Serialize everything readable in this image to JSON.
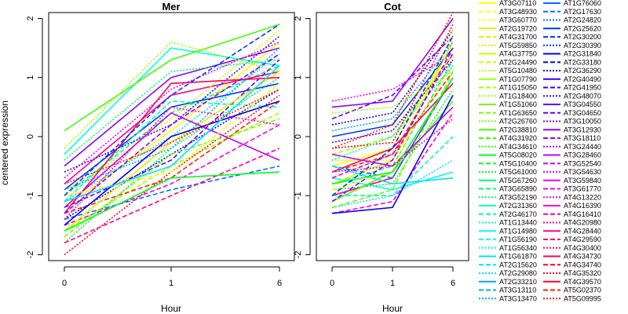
{
  "chart_data": [
    {
      "type": "line",
      "title": "Mer",
      "xlabel": "Hour",
      "ylabel": "centered expression",
      "x": [
        0,
        1,
        6
      ],
      "xticks": [
        "0",
        "1",
        "6"
      ],
      "yticks": [
        "-2",
        "-1",
        "0",
        "1",
        "2"
      ],
      "ylim": [
        -2.1,
        2.1
      ],
      "grid": false,
      "series": [
        {
          "values": [
            -1.2,
            0.1,
            1.6
          ]
        },
        {
          "values": [
            -1.0,
            0.4,
            1.2
          ]
        },
        {
          "values": [
            -1.4,
            -0.3,
            0.8
          ]
        },
        {
          "values": [
            -0.8,
            0.7,
            1.1
          ]
        },
        {
          "values": [
            -1.6,
            -0.5,
            0.4
          ]
        },
        {
          "values": [
            -1.1,
            0.0,
            1.4
          ]
        },
        {
          "values": [
            -0.5,
            1.0,
            1.5
          ]
        },
        {
          "values": [
            -1.3,
            -0.7,
            0.6
          ]
        },
        {
          "values": [
            -1.8,
            -0.2,
            1.0
          ]
        },
        {
          "values": [
            -0.9,
            0.5,
            0.9
          ]
        },
        {
          "values": [
            -1.5,
            -0.8,
            0.2
          ]
        },
        {
          "values": [
            -1.0,
            0.3,
            1.8
          ]
        },
        {
          "values": [
            -0.3,
            1.5,
            1.2
          ]
        },
        {
          "values": [
            -1.2,
            -0.4,
            1.3
          ]
        },
        {
          "values": [
            -2.0,
            -0.6,
            0.7
          ]
        },
        {
          "values": [
            0.1,
            1.3,
            1.9
          ]
        },
        {
          "values": [
            -1.4,
            -0.9,
            -0.5
          ]
        },
        {
          "values": [
            -0.7,
            0.8,
            1.6
          ]
        },
        {
          "values": [
            -1.6,
            -0.1,
            1.1
          ]
        },
        {
          "values": [
            -1.1,
            0.6,
            0.5
          ]
        },
        {
          "values": [
            -0.6,
            0.2,
            1.7
          ]
        },
        {
          "values": [
            -1.3,
            0.9,
            1.0
          ]
        },
        {
          "values": [
            -1.7,
            -0.3,
            0.3
          ]
        },
        {
          "values": [
            -0.9,
            -0.2,
            1.5
          ]
        },
        {
          "values": [
            -1.2,
            0.4,
            -0.4
          ]
        },
        {
          "values": [
            -1.0,
            -0.6,
            0.9
          ]
        },
        {
          "values": [
            -0.4,
            1.1,
            1.3
          ]
        },
        {
          "values": [
            -1.5,
            0.0,
            0.6
          ]
        },
        {
          "values": [
            -1.8,
            -1.0,
            -0.2
          ]
        },
        {
          "values": [
            -0.2,
            1.6,
            1.1
          ]
        },
        {
          "values": [
            -1.1,
            -0.5,
            1.2
          ]
        },
        {
          "values": [
            -1.3,
            0.2,
            1.4
          ]
        },
        {
          "values": [
            -0.8,
            -0.1,
            0.8
          ]
        },
        {
          "values": [
            -1.6,
            -0.7,
            -0.6
          ]
        },
        {
          "values": [
            -1.0,
            0.7,
            1.9
          ]
        },
        {
          "values": [
            -1.4,
            0.5,
            0.2
          ]
        }
      ]
    },
    {
      "type": "line",
      "title": "Cot",
      "xlabel": "Hour",
      "x": [
        0,
        1,
        6
      ],
      "xticks": [
        "0",
        "1",
        "6"
      ],
      "yticks": [
        "-2",
        "-1",
        "0",
        "1",
        "2"
      ],
      "ylim": [
        -2.1,
        2.1
      ],
      "grid": false,
      "series": [
        {
          "values": [
            -0.5,
            -0.2,
            1.6
          ]
        },
        {
          "values": [
            -0.8,
            -0.5,
            1.3
          ]
        },
        {
          "values": [
            0.2,
            0.4,
            1.8
          ]
        },
        {
          "values": [
            -1.0,
            -0.7,
            1.0
          ]
        },
        {
          "values": [
            -0.3,
            0.0,
            1.4
          ]
        },
        {
          "values": [
            -1.2,
            -1.0,
            -0.4
          ]
        },
        {
          "values": [
            0.5,
            0.6,
            2.0
          ]
        },
        {
          "values": [
            -0.6,
            -0.3,
            1.1
          ]
        },
        {
          "values": [
            -0.9,
            -0.8,
            0.8
          ]
        },
        {
          "values": [
            0.0,
            0.2,
            1.5
          ]
        },
        {
          "values": [
            -1.3,
            -1.1,
            0.4
          ]
        },
        {
          "values": [
            -0.4,
            -0.4,
            1.2
          ]
        },
        {
          "values": [
            -0.7,
            -0.9,
            -0.6
          ]
        },
        {
          "values": [
            0.3,
            0.7,
            1.7
          ]
        },
        {
          "values": [
            -0.2,
            -0.1,
            1.9
          ]
        },
        {
          "values": [
            -1.1,
            -0.6,
            0.6
          ]
        },
        {
          "values": [
            -0.5,
            -0.7,
            1.0
          ]
        },
        {
          "values": [
            0.6,
            0.8,
            1.4
          ]
        },
        {
          "values": [
            -0.8,
            -0.4,
            1.6
          ]
        },
        {
          "values": [
            -1.0,
            -1.0,
            0.0
          ]
        },
        {
          "values": [
            -0.1,
            0.1,
            1.3
          ]
        },
        {
          "values": [
            -0.6,
            -0.2,
            0.9
          ]
        },
        {
          "values": [
            -1.2,
            -0.9,
            1.1
          ]
        },
        {
          "values": [
            0.1,
            0.3,
            1.6
          ]
        },
        {
          "values": [
            -0.3,
            -0.5,
            0.5
          ]
        },
        {
          "values": [
            -0.9,
            -0.6,
            1.8
          ]
        },
        {
          "values": [
            -0.4,
            0.0,
            1.2
          ]
        },
        {
          "values": [
            -1.3,
            -1.2,
            0.7
          ]
        },
        {
          "values": [
            -0.7,
            -0.3,
            1.4
          ]
        },
        {
          "values": [
            0.4,
            0.5,
            1.1
          ]
        },
        {
          "values": [
            -0.5,
            -0.8,
            -0.7
          ]
        },
        {
          "values": [
            -1.1,
            -0.4,
            1.5
          ]
        },
        {
          "values": [
            -0.2,
            0.2,
            2.1
          ]
        },
        {
          "values": [
            -0.8,
            -0.6,
            1.0
          ]
        },
        {
          "values": [
            -1.0,
            -0.2,
            1.7
          ]
        },
        {
          "values": [
            -0.6,
            -0.5,
            0.3
          ]
        }
      ]
    }
  ],
  "legend": {
    "column1": [
      "AT3G07110",
      "AT3G48930",
      "AT3G60770",
      "AT2G19720",
      "AT4G31700",
      "AT5G59850",
      "AT4G37750",
      "AT2G24490",
      "AT5G10480",
      "AT1G07790",
      "AT1G15050",
      "AT1G18400",
      "AT1G51060",
      "AT1G63650",
      "AT2G26760",
      "AT2G38810",
      "AT4G31920",
      "AT4G34610",
      "AT5G08020",
      "AT5G10400",
      "AT5G61000",
      "AT5G67260",
      "AT3G65890",
      "AT3G52190",
      "AT2G31360",
      "AT2G46170",
      "AT1G13440",
      "AT1G14980",
      "AT1G56190",
      "AT1G56340",
      "AT1G61870",
      "AT2G15620",
      "AT2G29080",
      "AT2G33210",
      "AT3G13110",
      "AT3G13470"
    ],
    "column2": [
      "AT1G76060",
      "AT2G17630",
      "AT2G24820",
      "AT2G25620",
      "AT2G30200",
      "AT2G30390",
      "AT2G31840",
      "AT2G33180",
      "AT2G36290",
      "AT2G40490",
      "AT2G41950",
      "AT2G48070",
      "AT3G04550",
      "AT3G04650",
      "AT3G10050",
      "AT3G12930",
      "AT3G18110",
      "AT3G24440",
      "AT3G28460",
      "AT3G52540",
      "AT3G54630",
      "AT3G59840",
      "AT3G61770",
      "AT4G13220",
      "AT4G16390",
      "AT4G16410",
      "AT4G20980",
      "AT4G28440",
      "AT4G29590",
      "AT4G30400",
      "AT4G34730",
      "AT4G34740",
      "AT4G35320",
      "AT4G39570",
      "AT5G02370",
      "AT5G09995"
    ],
    "palette": [
      "#ffff00",
      "#e0f000",
      "#c8ff00",
      "#a0ff00",
      "#70ff00",
      "#40ff00",
      "#00ff20",
      "#00ff70",
      "#00ffb0",
      "#00ffe8",
      "#00e0ff",
      "#00a8ff",
      "#0070ff",
      "#0038ff",
      "#0000ff",
      "#3000ff",
      "#6000ff",
      "#9000ff",
      "#c000ff",
      "#f000ff",
      "#ff00d0",
      "#ff0090",
      "#ff0050",
      "#ff0020",
      "#ff2000"
    ]
  }
}
